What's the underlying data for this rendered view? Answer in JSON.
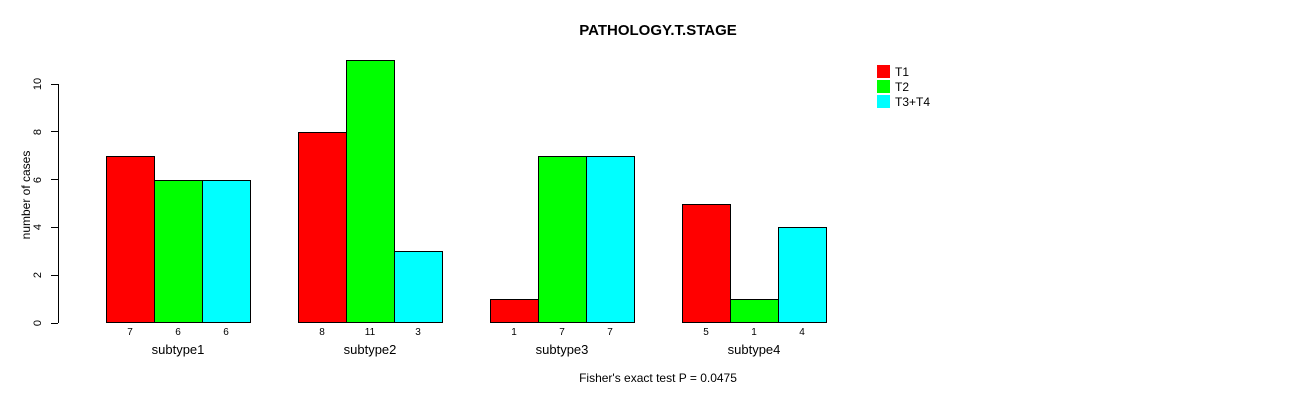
{
  "chart_data": {
    "type": "bar",
    "title": "PATHOLOGY.T.STAGE",
    "ylabel": "number of cases",
    "xlabel": "",
    "categories": [
      "subtype1",
      "subtype2",
      "subtype3",
      "subtype4"
    ],
    "series": [
      {
        "name": "T1",
        "color": "#ff0000",
        "values": [
          7,
          8,
          1,
          5
        ]
      },
      {
        "name": "T2",
        "color": "#00ff00",
        "values": [
          6,
          11,
          7,
          1
        ]
      },
      {
        "name": "T3+T4",
        "color": "#00ffff",
        "values": [
          6,
          3,
          7,
          4
        ]
      }
    ],
    "yticks": [
      0,
      2,
      4,
      6,
      8,
      10
    ],
    "ylim": [
      0,
      10
    ],
    "grid": false,
    "show_bar_values": true,
    "bar_border_color": "#000000",
    "legend_position": "top-right",
    "footnote": "Fisher's exact test P = 0.0475"
  }
}
